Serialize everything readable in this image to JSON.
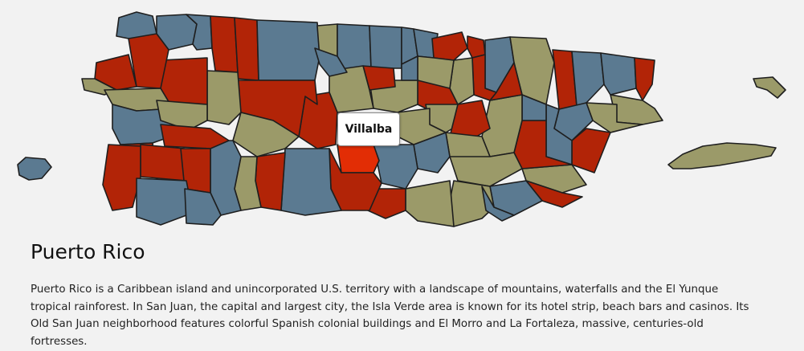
{
  "map": {
    "region": "Puerto Rico",
    "palette": {
      "red": "#b22407",
      "blue": "#5b7a91",
      "olive": "#9b9a69",
      "highlight": "#e22d05",
      "outline": "#1e1e1e"
    },
    "highlighted_municipality": "Villalba",
    "tooltip_text": "Villalba"
  },
  "content": {
    "title": "Puerto Rico",
    "description": "Puerto Rico is a Caribbean island and unincorporated U.S. territory with a landscape of mountains, waterfalls and the El Yunque tropical rainforest. In San Juan, the capital and largest city, the Isla Verde area is known for its hotel strip, beach bars and casinos. Its Old San Juan neighborhood features colorful Spanish colonial buildings and El Morro and La Fortaleza, massive, centuries-old fortresses."
  }
}
